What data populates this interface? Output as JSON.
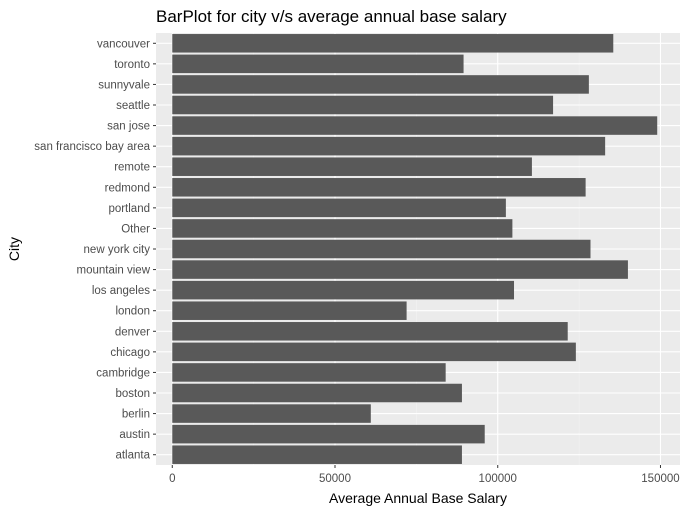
{
  "chart_data": {
    "type": "bar",
    "orientation": "horizontal",
    "title": "BarPlot for city v/s average annual base salary",
    "xlabel": "Average Annual Base Salary",
    "ylabel": "City",
    "categories": [
      "vancouver",
      "toronto",
      "sunnyvale",
      "seattle",
      "san jose",
      "san francisco bay area",
      "remote",
      "redmond",
      "portland",
      "Other",
      "new york city",
      "mountain view",
      "los angeles",
      "london",
      "denver",
      "chicago",
      "cambridge",
      "boston",
      "berlin",
      "austin",
      "atlanta"
    ],
    "values": [
      135500,
      89500,
      128000,
      117000,
      149000,
      133000,
      110500,
      127000,
      102500,
      104500,
      128500,
      140000,
      105000,
      72000,
      121500,
      124000,
      84000,
      89000,
      61000,
      96000,
      89000
    ],
    "x_ticks": [
      0,
      50000,
      100000,
      150000
    ],
    "x_tick_labels": [
      "0",
      "50000",
      "100000",
      "150000"
    ],
    "xlim": [
      -5000,
      156000
    ],
    "grid": true,
    "colors": {
      "bar": "#595959",
      "panel": "#ebebeb",
      "grid_major": "#ffffff",
      "grid_minor": "#f2f2f2"
    }
  }
}
